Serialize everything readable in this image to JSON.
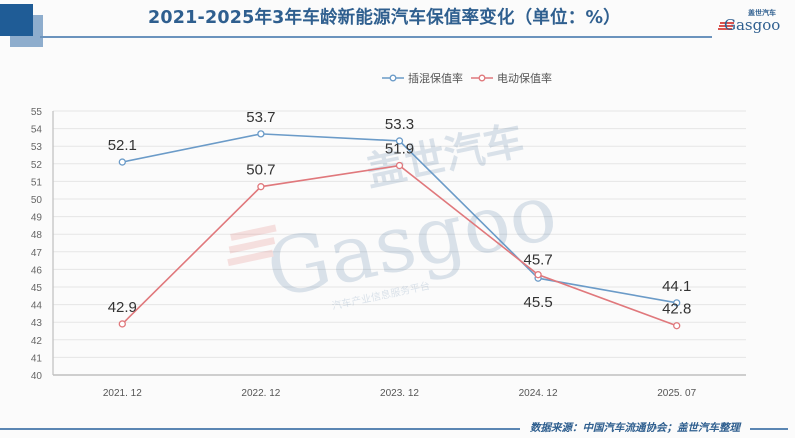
{
  "header": {
    "title": "2021-2025年3年车龄新能源汽车保值率变化（单位：%）",
    "logo_text": "Gasgoo",
    "logo_cn": "盖世汽车"
  },
  "legend": {
    "items": [
      {
        "label": "插混保值率",
        "color": "#6b9bc8"
      },
      {
        "label": "电动保值率",
        "color": "#e0787c"
      }
    ]
  },
  "watermark": {
    "cn": "盖世汽车",
    "en": "Gasgoo",
    "sub": "汽车产业信息服务平台"
  },
  "footer": {
    "source": "数据来源：中国汽车流通协会；盖世汽车整理"
  },
  "colors": {
    "phev": "#6b9bc8",
    "bev": "#e0787c",
    "title": "#2f5f8f",
    "grid": "#e6e6e6",
    "axis": "#bfbfbf"
  },
  "chart_data": {
    "type": "line",
    "title": "2021-2025年3年车龄新能源汽车保值率变化（单位：%）",
    "xlabel": "",
    "ylabel": "",
    "categories": [
      "2021.12",
      "2022.12",
      "2023.12",
      "2024.12",
      "2025.07"
    ],
    "series": [
      {
        "name": "插混保值率",
        "values": [
          52.1,
          53.7,
          53.3,
          45.5,
          44.1
        ]
      },
      {
        "name": "电动保值率",
        "values": [
          42.9,
          50.7,
          51.9,
          45.7,
          42.8
        ]
      }
    ],
    "ylim": [
      40,
      55
    ],
    "yticks": [
      40,
      41,
      42,
      43,
      44,
      45,
      46,
      47,
      48,
      49,
      50,
      51,
      52,
      53,
      54,
      55
    ],
    "grid": true,
    "legend_position": "top-center",
    "data_labels": true
  }
}
